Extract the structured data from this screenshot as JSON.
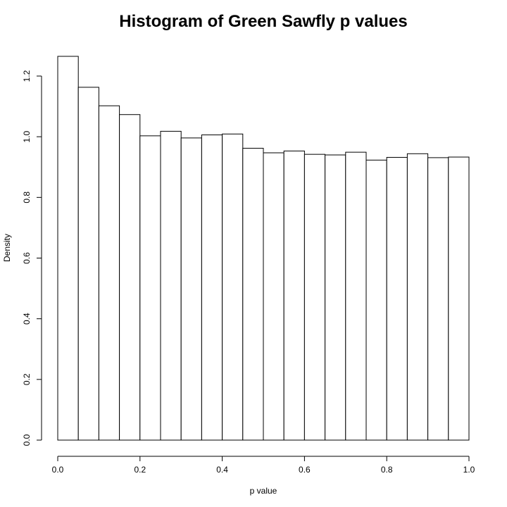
{
  "chart_data": {
    "type": "bar",
    "title": "Histogram of Green Sawfly p values",
    "xlabel": "p value",
    "ylabel": "Density",
    "bin_edges": [
      0.0,
      0.05,
      0.1,
      0.15,
      0.2,
      0.25,
      0.3,
      0.35,
      0.4,
      0.45,
      0.5,
      0.55,
      0.6,
      0.65,
      0.7,
      0.75,
      0.8,
      0.85,
      0.9,
      0.95,
      1.0
    ],
    "values": [
      1.265,
      1.163,
      1.102,
      1.073,
      1.003,
      1.018,
      0.996,
      1.006,
      1.009,
      0.962,
      0.947,
      0.953,
      0.942,
      0.94,
      0.949,
      0.923,
      0.932,
      0.944,
      0.931,
      0.933
    ],
    "xlim": [
      0.0,
      1.0
    ],
    "ylim": [
      0.0,
      1.265
    ],
    "x_ticks": [
      0.0,
      0.2,
      0.4,
      0.6,
      0.8,
      1.0
    ],
    "x_tick_labels": [
      "0.0",
      "0.2",
      "0.4",
      "0.6",
      "0.8",
      "1.0"
    ],
    "y_ticks": [
      0.0,
      0.2,
      0.4,
      0.6,
      0.8,
      1.0,
      1.2
    ],
    "y_tick_labels": [
      "0.0",
      "0.2",
      "0.4",
      "0.6",
      "0.8",
      "1.0",
      "1.2"
    ],
    "bar_fill": "#ffffff",
    "bar_stroke": "#000000",
    "grid": false
  }
}
